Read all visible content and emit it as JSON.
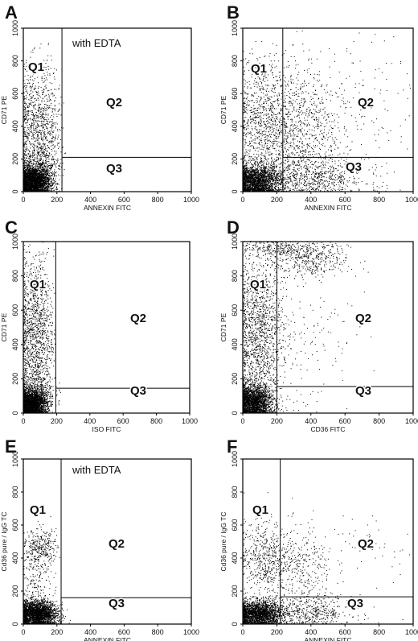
{
  "chart_data": [
    {
      "type": "scatter",
      "panel": "A",
      "annotation": "with  EDTA",
      "xlabel": "ANNEXIN FITC",
      "ylabel": "CD71 PE",
      "xlim": [
        0,
        1000
      ],
      "ylim": [
        0,
        1000
      ],
      "xticks": [
        0,
        200,
        400,
        600,
        800,
        1000
      ],
      "yticks": [
        0,
        200,
        400,
        600,
        800,
        1000
      ],
      "gate": {
        "x": 230,
        "y": 210
      },
      "quadrants": [
        "Q1",
        "Q2",
        "Q3"
      ],
      "clusters": [
        {
          "cx": 60,
          "cy": 60,
          "sx": 50,
          "sy": 45,
          "n": 2600,
          "xmin": 0,
          "xmax": 260,
          "ymin": 0,
          "ymax": 1000
        },
        {
          "cx": 90,
          "cy": 380,
          "sx": 70,
          "sy": 190,
          "n": 1100,
          "xmin": 0,
          "xmax": 240,
          "ymin": 0,
          "ymax": 1000
        },
        {
          "cx": 100,
          "cy": 150,
          "sx": 60,
          "sy": 60,
          "n": 400,
          "xmin": 0,
          "xmax": 260,
          "ymin": 0,
          "ymax": 1000
        }
      ]
    },
    {
      "type": "scatter",
      "panel": "B",
      "xlabel": "ANNEXIN FITC",
      "ylabel": "CD71 PE",
      "xlim": [
        0,
        1000
      ],
      "ylim": [
        0,
        1000
      ],
      "xticks": [
        0,
        200,
        400,
        600,
        800,
        1000
      ],
      "yticks": [
        0,
        200,
        400,
        600,
        800,
        1000
      ],
      "gate": {
        "x": 235,
        "y": 210
      },
      "quadrants": [
        "Q1",
        "Q2",
        "Q3"
      ],
      "clusters": [
        {
          "cx": 80,
          "cy": 60,
          "sx": 70,
          "sy": 50,
          "n": 2200,
          "xmin": 0,
          "xmax": 1000,
          "ymin": 0,
          "ymax": 1000
        },
        {
          "cx": 120,
          "cy": 420,
          "sx": 90,
          "sy": 200,
          "n": 900,
          "xmin": 0,
          "xmax": 1000,
          "ymin": 0,
          "ymax": 1000
        },
        {
          "cx": 330,
          "cy": 380,
          "sx": 110,
          "sy": 180,
          "n": 700,
          "xmin": 0,
          "xmax": 1000,
          "ymin": 0,
          "ymax": 1000
        },
        {
          "cx": 380,
          "cy": 80,
          "sx": 170,
          "sy": 60,
          "n": 700,
          "xmin": 0,
          "xmax": 1000,
          "ymin": 0,
          "ymax": 1000
        },
        {
          "cx": 550,
          "cy": 450,
          "sx": 220,
          "sy": 260,
          "n": 300,
          "xmin": 0,
          "xmax": 1000,
          "ymin": 0,
          "ymax": 1000
        }
      ]
    },
    {
      "type": "scatter",
      "panel": "C",
      "xlabel": "ISO FITC",
      "ylabel": "CD71 PE",
      "xlim": [
        0,
        1000
      ],
      "ylim": [
        0,
        1000
      ],
      "xticks": [
        0,
        200,
        400,
        600,
        800,
        1000
      ],
      "yticks": [
        0,
        200,
        400,
        600,
        800,
        1000
      ],
      "gate": {
        "x": 195,
        "y": 145
      },
      "quadrants": [
        "Q1",
        "Q2",
        "Q3"
      ],
      "clusters": [
        {
          "cx": 50,
          "cy": 50,
          "sx": 45,
          "sy": 40,
          "n": 2500,
          "xmin": 0,
          "xmax": 230,
          "ymin": 0,
          "ymax": 1000
        },
        {
          "cx": 70,
          "cy": 450,
          "sx": 55,
          "sy": 230,
          "n": 1400,
          "xmin": 0,
          "xmax": 200,
          "ymin": 0,
          "ymax": 1000
        },
        {
          "cx": 80,
          "cy": 130,
          "sx": 55,
          "sy": 50,
          "n": 300,
          "xmin": 0,
          "xmax": 230,
          "ymin": 0,
          "ymax": 1000
        }
      ]
    },
    {
      "type": "scatter",
      "panel": "D",
      "xlabel": "CD36 FITC",
      "ylabel": "CD71 PE",
      "xlim": [
        0,
        1000
      ],
      "ylim": [
        0,
        1000
      ],
      "xticks": [
        0,
        200,
        400,
        600,
        800,
        1000
      ],
      "yticks": [
        0,
        200,
        400,
        600,
        800,
        1000
      ],
      "gate": {
        "x": 200,
        "y": 155
      },
      "quadrants": [
        "Q1",
        "Q2",
        "Q3"
      ],
      "clusters": [
        {
          "cx": 60,
          "cy": 60,
          "sx": 55,
          "sy": 50,
          "n": 2200,
          "xmin": 0,
          "xmax": 1000,
          "ymin": 0,
          "ymax": 1000
        },
        {
          "cx": 90,
          "cy": 450,
          "sx": 70,
          "sy": 240,
          "n": 1500,
          "xmin": 0,
          "xmax": 1000,
          "ymin": 0,
          "ymax": 1000
        },
        {
          "cx": 400,
          "cy": 900,
          "sx": 110,
          "sy": 60,
          "n": 450,
          "xmin": 0,
          "xmax": 1000,
          "ymin": 0,
          "ymax": 1000
        },
        {
          "cx": 200,
          "cy": 960,
          "sx": 100,
          "sy": 30,
          "n": 250,
          "xmin": 0,
          "xmax": 1000,
          "ymin": 0,
          "ymax": 1000
        },
        {
          "cx": 330,
          "cy": 450,
          "sx": 160,
          "sy": 250,
          "n": 180,
          "xmin": 0,
          "xmax": 1000,
          "ymin": 0,
          "ymax": 1000
        }
      ]
    },
    {
      "type": "scatter",
      "panel": "E",
      "annotation": "with  EDTA",
      "xlabel": "ANNEXIN FITC",
      "ylabel": "Cd36 pure / IgG TC",
      "xlim": [
        0,
        1000
      ],
      "ylim": [
        0,
        1000
      ],
      "xticks": [
        0,
        200,
        400,
        600,
        800,
        1000
      ],
      "yticks": [
        0,
        200,
        400,
        600,
        800,
        1000
      ],
      "gate": {
        "x": 225,
        "y": 160
      },
      "quadrants": [
        "Q1",
        "Q2",
        "Q3"
      ],
      "clusters": [
        {
          "cx": 80,
          "cy": 60,
          "sx": 60,
          "sy": 40,
          "n": 2600,
          "xmin": 0,
          "xmax": 300,
          "ymin": 0,
          "ymax": 1000
        },
        {
          "cx": 100,
          "cy": 450,
          "sx": 50,
          "sy": 60,
          "n": 350,
          "xmin": 0,
          "xmax": 220,
          "ymin": 0,
          "ymax": 1000
        },
        {
          "cx": 80,
          "cy": 250,
          "sx": 50,
          "sy": 90,
          "n": 150,
          "xmin": 0,
          "xmax": 220,
          "ymin": 0,
          "ymax": 1000
        }
      ]
    },
    {
      "type": "scatter",
      "panel": "F",
      "xlabel": "ANNEXIN FITC",
      "ylabel": "Cd36 pure / IgG TC",
      "xlim": [
        0,
        1000
      ],
      "ylim": [
        0,
        1000
      ],
      "xticks": [
        0,
        200,
        400,
        600,
        800,
        1000
      ],
      "yticks": [
        0,
        200,
        400,
        600,
        800,
        1000
      ],
      "gate": {
        "x": 220,
        "y": 165
      },
      "quadrants": [
        "Q1",
        "Q2",
        "Q3"
      ],
      "clusters": [
        {
          "cx": 90,
          "cy": 60,
          "sx": 70,
          "sy": 40,
          "n": 2200,
          "xmin": 0,
          "xmax": 1000,
          "ymin": 0,
          "ymax": 1000
        },
        {
          "cx": 120,
          "cy": 400,
          "sx": 70,
          "sy": 110,
          "n": 500,
          "xmin": 0,
          "xmax": 1000,
          "ymin": 0,
          "ymax": 1000
        },
        {
          "cx": 330,
          "cy": 330,
          "sx": 100,
          "sy": 130,
          "n": 380,
          "xmin": 0,
          "xmax": 1000,
          "ymin": 0,
          "ymax": 1000
        },
        {
          "cx": 380,
          "cy": 70,
          "sx": 130,
          "sy": 50,
          "n": 500,
          "xmin": 0,
          "xmax": 1000,
          "ymin": 0,
          "ymax": 1000
        },
        {
          "cx": 720,
          "cy": 480,
          "sx": 150,
          "sy": 110,
          "n": 50,
          "xmin": 0,
          "xmax": 1000,
          "ymin": 0,
          "ymax": 1000
        }
      ]
    }
  ]
}
